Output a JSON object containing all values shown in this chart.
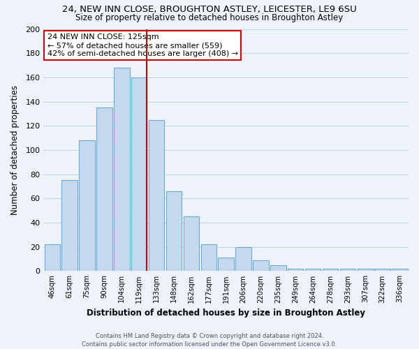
{
  "title1": "24, NEW INN CLOSE, BROUGHTON ASTLEY, LEICESTER, LE9 6SU",
  "title2": "Size of property relative to detached houses in Broughton Astley",
  "xlabel": "Distribution of detached houses by size in Broughton Astley",
  "ylabel": "Number of detached properties",
  "bar_labels": [
    "46sqm",
    "61sqm",
    "75sqm",
    "90sqm",
    "104sqm",
    "119sqm",
    "133sqm",
    "148sqm",
    "162sqm",
    "177sqm",
    "191sqm",
    "206sqm",
    "220sqm",
    "235sqm",
    "249sqm",
    "264sqm",
    "278sqm",
    "293sqm",
    "307sqm",
    "322sqm",
    "336sqm"
  ],
  "bar_values": [
    22,
    75,
    108,
    135,
    168,
    160,
    125,
    66,
    45,
    22,
    11,
    20,
    9,
    5,
    2,
    2,
    2,
    2,
    2,
    2,
    2
  ],
  "bar_color": "#c5d8f0",
  "bar_edge_color": "#6aaad4",
  "vline_x_index": 5,
  "vline_color": "#cc0000",
  "annotation_lines": [
    "24 NEW INN CLOSE: 125sqm",
    "← 57% of detached houses are smaller (559)",
    "42% of semi-detached houses are larger (408) →"
  ],
  "annotation_box_color": "#ffffff",
  "annotation_box_edge_color": "#cc0000",
  "ylim": [
    0,
    200
  ],
  "yticks": [
    0,
    20,
    40,
    60,
    80,
    100,
    120,
    140,
    160,
    180,
    200
  ],
  "footer1": "Contains HM Land Registry data © Crown copyright and database right 2024.",
  "footer2": "Contains public sector information licensed under the Open Government Licence v3.0.",
  "bg_color": "#eef2fb",
  "plot_bg_color": "#eef2fb",
  "grid_color": "#c8d4e8"
}
